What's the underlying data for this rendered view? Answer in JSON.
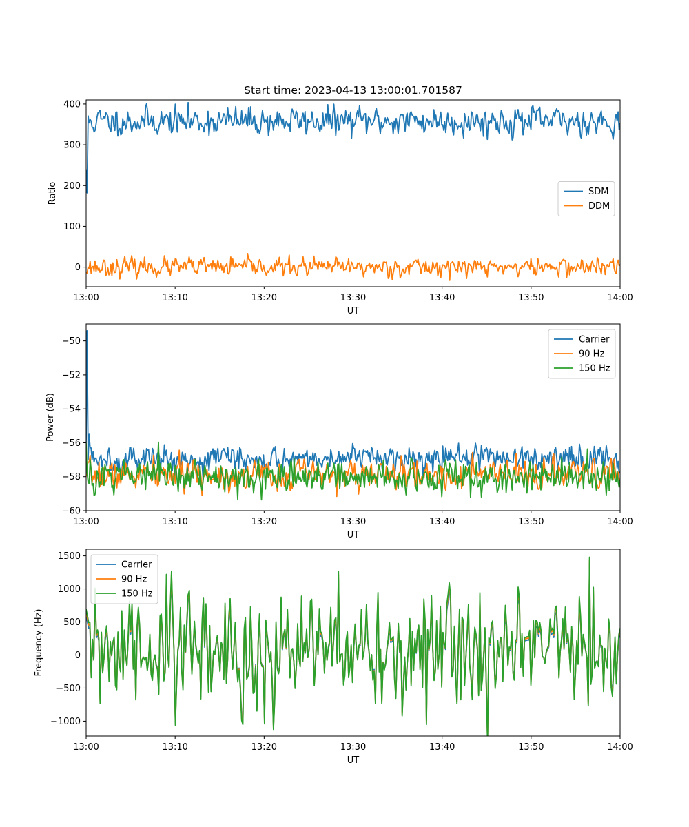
{
  "figure": {
    "title": "Start time: 2023-04-13 13:00:01.701587"
  },
  "colors": {
    "blue": "#1f77b4",
    "orange": "#ff7f0e",
    "green": "#2ca02c",
    "axis": "#000000",
    "background": "#ffffff"
  },
  "chart_data": [
    {
      "type": "line",
      "title": "Start time: 2023-04-13 13:00:01.701587",
      "xlabel": "UT",
      "ylabel": "Ratio",
      "xlim": [
        "13:00",
        "14:00"
      ],
      "ylim": [
        -48,
        410
      ],
      "x_ticks": [
        "13:00",
        "13:10",
        "13:20",
        "13:30",
        "13:40",
        "13:50",
        "14:00"
      ],
      "y_ticks": [
        0,
        100,
        200,
        300,
        400
      ],
      "y_tick_labels": [
        "0",
        "100",
        "200",
        "300",
        "400"
      ],
      "grid": false,
      "legend": "center-right",
      "series": [
        {
          "name": "SDM",
          "color": "#1f77b4",
          "mean": 358,
          "noise": 14,
          "seed": 11,
          "points": [
            [
              "13:00",
              240
            ],
            [
              "13:00:10",
              182
            ],
            [
              "13:00:30",
              362
            ],
            [
              "13:01",
              335
            ]
          ]
        },
        {
          "name": "DDM",
          "color": "#ff7f0e",
          "mean": 0,
          "noise": 9,
          "seed": 23,
          "points": [
            [
              "13:00",
              -12
            ]
          ]
        }
      ]
    },
    {
      "type": "line",
      "xlabel": "UT",
      "ylabel": "Power (dB)",
      "xlim": [
        "13:00",
        "14:00"
      ],
      "ylim": [
        -60,
        -49
      ],
      "x_ticks": [
        "13:00",
        "13:10",
        "13:20",
        "13:30",
        "13:40",
        "13:50",
        "14:00"
      ],
      "y_ticks": [
        -60,
        -58,
        -56,
        -54,
        -52,
        -50
      ],
      "y_tick_labels": [
        "−60",
        "−58",
        "−56",
        "−54",
        "−52",
        "−50"
      ],
      "grid": false,
      "legend": "top-right",
      "series": [
        {
          "name": "Carrier",
          "color": "#1f77b4",
          "mean": -56.9,
          "noise": 0.3,
          "seed": 5,
          "points": [
            [
              "13:00",
              -56.0
            ],
            [
              "13:00:10",
              -49.4
            ],
            [
              "13:00:20",
              -55.5
            ],
            [
              "13:01",
              -56.9
            ]
          ]
        },
        {
          "name": "90 Hz",
          "color": "#ff7f0e",
          "mean": -57.9,
          "noise": 0.35,
          "seed": 7,
          "points": [
            [
              "13:00",
              -58.0
            ]
          ]
        },
        {
          "name": "150 Hz",
          "color": "#2ca02c",
          "mean": -58.0,
          "noise": 0.4,
          "seed": 9,
          "points": [
            [
              "13:00",
              -56.0
            ],
            [
              "13:00:20",
              -58.4
            ]
          ]
        }
      ]
    },
    {
      "type": "line",
      "xlabel": "UT",
      "ylabel": "Frequency (Hz)",
      "xlim": [
        "13:00",
        "14:00"
      ],
      "ylim": [
        -1225,
        1600
      ],
      "x_ticks": [
        "13:00",
        "13:10",
        "13:20",
        "13:30",
        "13:40",
        "13:50",
        "14:00"
      ],
      "y_ticks": [
        -1000,
        -500,
        0,
        500,
        1000,
        1500
      ],
      "y_tick_labels": [
        "−1000",
        "−500",
        "0",
        "500",
        "1000",
        "1500"
      ],
      "grid": false,
      "legend": "top-left",
      "series": [
        {
          "name": "Carrier",
          "color": "#1f77b4",
          "offset": -80
        },
        {
          "name": "90 Hz",
          "color": "#ff7f0e",
          "offset": -35
        },
        {
          "name": "150 Hz",
          "color": "#2ca02c",
          "offset": 0
        }
      ],
      "shared": {
        "mean": 60,
        "noise": 330,
        "seed": 31,
        "points": [
          [
            "13:09",
            1220
          ],
          [
            "13:10",
            -1060
          ],
          [
            "13:17:40",
            -1050
          ],
          [
            "13:20",
            -1040
          ],
          [
            "13:38:10",
            -1050
          ],
          [
            "13:56:30",
            1480
          ]
        ]
      }
    }
  ]
}
